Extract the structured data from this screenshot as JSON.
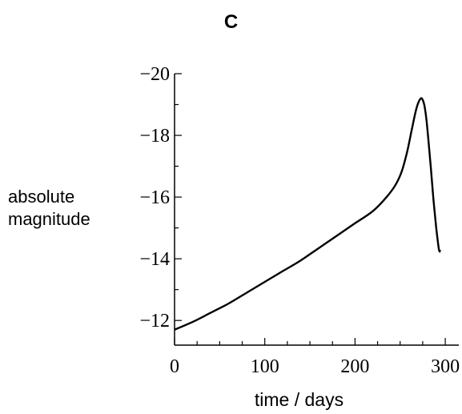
{
  "panel_label": "C",
  "chart_data": {
    "type": "line",
    "title": "C",
    "xlabel": "time / days",
    "ylabel_lines": [
      "absolute",
      "magnitude"
    ],
    "xlim": [
      0,
      315
    ],
    "ylim": [
      -11.2,
      -20
    ],
    "y_inverted": true,
    "x_ticks": [
      0,
      100,
      200,
      300
    ],
    "x_tick_labels": [
      "0",
      "100",
      "200",
      "300"
    ],
    "y_ticks": [
      -12,
      -14,
      -16,
      -18,
      -20
    ],
    "y_tick_labels": [
      "−12",
      "−14",
      "−16",
      "−18",
      "−20"
    ],
    "x_minor_step": 25,
    "y_minor_step": 1,
    "grid": false,
    "series": [
      {
        "x": [
          0,
          20,
          40,
          60,
          80,
          100,
          120,
          140,
          160,
          180,
          200,
          220,
          235,
          245,
          252,
          258,
          263,
          267,
          270,
          273,
          275,
          277,
          279,
          281,
          284,
          287,
          290,
          293,
          295
        ],
        "y": [
          -11.7,
          -11.95,
          -12.25,
          -12.55,
          -12.9,
          -13.25,
          -13.6,
          -13.95,
          -14.35,
          -14.75,
          -15.15,
          -15.55,
          -16.0,
          -16.4,
          -16.85,
          -17.5,
          -18.2,
          -18.75,
          -19.05,
          -19.2,
          -19.15,
          -18.95,
          -18.55,
          -17.95,
          -16.95,
          -15.9,
          -15.0,
          -14.3,
          -14.25
        ]
      }
    ]
  }
}
